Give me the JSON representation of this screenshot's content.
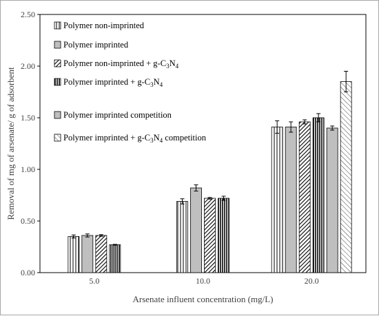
{
  "chart_data": {
    "type": "bar",
    "title": "",
    "xlabel": "Arsenate influent concentration (mg/L)",
    "ylabel": "Removal of mg of arsenate/ g of adsorbent",
    "ylim": [
      0,
      2.5
    ],
    "yticks": [
      "0.00",
      "0.50",
      "1.00",
      "1.50",
      "2.00",
      "2.50"
    ],
    "categories": [
      "5.0",
      "10.0",
      "20.0"
    ],
    "grid": false,
    "legend_position": "top-left",
    "series": [
      {
        "key": "pni",
        "legend_parts": [
          "Polymer non-imprinted"
        ],
        "pattern": "vertical-lines",
        "values": [
          0.35,
          0.69,
          1.41
        ],
        "errors": [
          0.015,
          0.025,
          0.06
        ]
      },
      {
        "key": "pi",
        "legend_parts": [
          "Polymer imprinted"
        ],
        "pattern": "solid-gray",
        "values": [
          0.36,
          0.82,
          1.41
        ],
        "errors": [
          0.015,
          0.03,
          0.05
        ]
      },
      {
        "key": "pnig",
        "legend_parts": [
          "Polymer non-imprinted + g-C",
          "3",
          "N",
          "4"
        ],
        "pattern": "diagonal-dense",
        "values": [
          0.36,
          0.72,
          1.46
        ],
        "errors": [
          0.008,
          0.008,
          0.02
        ]
      },
      {
        "key": "pig",
        "legend_parts": [
          "Polymer imprinted + g-C",
          "3",
          "N",
          "4"
        ],
        "pattern": "vertical-dense",
        "values": [
          0.27,
          0.72,
          1.5
        ],
        "errors": [
          0.004,
          0.02,
          0.04
        ]
      },
      {
        "key": "pic",
        "legend_parts": [
          "Polymer imprinted competition"
        ],
        "pattern": "solid-gray",
        "values": [
          null,
          null,
          1.4
        ],
        "errors": [
          null,
          null,
          0.02
        ]
      },
      {
        "key": "pigc",
        "legend_parts": [
          "Polymer imprinted + g-C",
          "3",
          "N",
          "4",
          " competition"
        ],
        "pattern": "diagonal-sparse",
        "values": [
          null,
          null,
          1.85
        ],
        "errors": [
          null,
          null,
          0.1
        ]
      }
    ]
  }
}
